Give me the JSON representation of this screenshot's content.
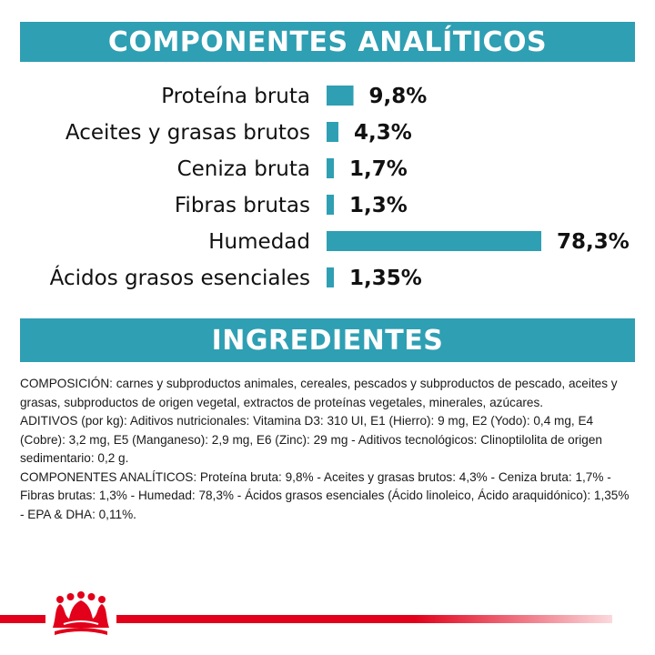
{
  "analytics_title": "COMPONENTES ANALÍTICOS",
  "ingredients_title": "INGREDIENTES",
  "chart_data": {
    "type": "bar",
    "orientation": "horizontal",
    "categories": [
      "Proteína bruta",
      "Aceites y grasas brutos",
      "Ceniza bruta",
      "Fibras brutas",
      "Humedad",
      "Ácidos grasos esenciales"
    ],
    "values": [
      9.8,
      4.3,
      1.7,
      1.3,
      78.3,
      1.35
    ],
    "value_labels": [
      "9,8%",
      "4,3%",
      "1,7%",
      "1,3%",
      "78,3%",
      "1,35%"
    ],
    "title": "",
    "xlabel": "",
    "ylabel": "",
    "grid": false,
    "bar_color": "#2f9fb3"
  },
  "ingredients_text": "COMPOSICIÓN: carnes y subproductos animales, cereales, pescados y subproductos de pescado, aceites y grasas, subproductos de origen vegetal, extractos de proteínas vegetales, minerales, azúcares.\n ADITIVOS (por kg): Aditivos nutricionales: Vitamina D3: 310 UI, E1 (Hierro): 9 mg, E2 (Yodo): 0,4 mg, E4 (Cobre): 3,2 mg, E5 (Manganeso): 2,9 mg, E6 (Zinc): 29 mg - Aditivos tecnológicos: Clinoptilolita de origen sedimentario: 0,2 g.\n COMPONENTES ANALÍTICOS: Proteína bruta: 9,8% - Aceites y grasas brutos: 4,3% - Ceniza bruta: 1,7% - Fibras brutas: 1,3% - Humedad: 78,3% - Ácidos grasos esenciales (Ácido linoleico, Ácido araquidónico): 1,35% - EPA & DHA: 0,11%.",
  "colors": {
    "accent": "#2f9fb3",
    "brand_red": "#e2001a"
  },
  "logo": {
    "icon": "crown-icon"
  }
}
